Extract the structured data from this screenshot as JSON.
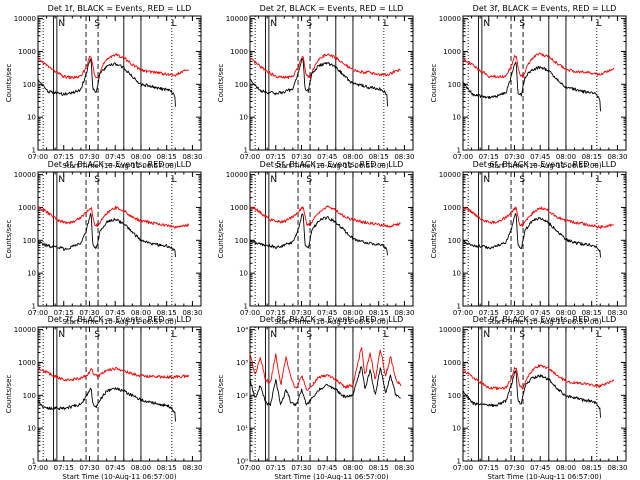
{
  "chart_data": {
    "type": "line",
    "x_tick_labels": [
      "07:00",
      "07:15",
      "07:30",
      "07:45",
      "08:00",
      "08:15",
      "08:30"
    ],
    "x_range": [
      "07:00",
      "08:35"
    ],
    "xlabel": "Start Time (10-Aug-11 06:57:00)",
    "ylabel": "Counts/sec",
    "y_scale": "log",
    "ylim": [
      1,
      12000
    ],
    "y_tick_labels": [
      "1",
      "10",
      "100",
      "1000",
      "10000"
    ],
    "y_tick_labels_exp": [
      "10⁰",
      "10¹",
      "10²",
      "10³",
      "10⁴"
    ],
    "markers": [
      {
        "label": "N",
        "time": "07:11"
      },
      {
        "label": "S",
        "time": "07:32"
      },
      {
        "label": "L",
        "time": "08:17"
      }
    ],
    "dotted_lines": [
      "07:03",
      "08:18"
    ],
    "solid_lines": [
      "07:09",
      "07:11",
      "07:50",
      "08:00"
    ],
    "dashed_lines": [
      "07:28",
      "07:35"
    ],
    "colors": {
      "events": "#000000",
      "lld": "#ff0000"
    },
    "panels": [
      {
        "title": "Det 1f, BLACK = Events, RED = LLD",
        "profile": "a",
        "events_scale": 1.0,
        "lld_scale": 1.0
      },
      {
        "title": "Det 2f, BLACK = Events, RED = LLD",
        "profile": "a",
        "events_scale": 1.05,
        "lld_scale": 1.0
      },
      {
        "title": "Det 3f, BLACK = Events, RED = LLD",
        "profile": "a",
        "events_scale": 0.8,
        "lld_scale": 1.05
      },
      {
        "title": "Det 4f, BLACK = Events, RED = LLD",
        "profile": "b",
        "events_scale": 0.9,
        "lld_scale": 1.0
      },
      {
        "title": "Det 5f, BLACK = Events, RED = LLD",
        "profile": "b",
        "events_scale": 1.0,
        "lld_scale": 1.05
      },
      {
        "title": "Det 6f, BLACK = Events, RED = LLD",
        "profile": "b",
        "events_scale": 0.95,
        "lld_scale": 1.0
      },
      {
        "title": "Det 7f, BLACK = Events, RED = LLD",
        "profile": "c",
        "events_scale": 0.9,
        "lld_scale": 1.0
      },
      {
        "title": "Det 8f, BLACK = Events, RED = LLD",
        "profile": "noisy",
        "events_scale": 1.0,
        "lld_scale": 1.0
      },
      {
        "title": "Det 9f, BLACK = Events, RED = LLD",
        "profile": "a",
        "events_scale": 0.95,
        "lld_scale": 1.0
      }
    ],
    "profiles": {
      "a": {
        "lld": [
          [
            0,
            600
          ],
          [
            5,
            380
          ],
          [
            10,
            250
          ],
          [
            15,
            170
          ],
          [
            20,
            160
          ],
          [
            25,
            170
          ],
          [
            28,
            320
          ],
          [
            30,
            650
          ],
          [
            31,
            700
          ],
          [
            33,
            180
          ],
          [
            35,
            170
          ],
          [
            38,
            400
          ],
          [
            42,
            700
          ],
          [
            45,
            800
          ],
          [
            50,
            650
          ],
          [
            55,
            400
          ],
          [
            60,
            270
          ],
          [
            65,
            240
          ],
          [
            70,
            230
          ],
          [
            75,
            200
          ],
          [
            80,
            190
          ],
          [
            85,
            250
          ],
          [
            88,
            280
          ]
        ],
        "events": [
          [
            0,
            140
          ],
          [
            3,
            90
          ],
          [
            6,
            60
          ],
          [
            10,
            55
          ],
          [
            15,
            50
          ],
          [
            20,
            55
          ],
          [
            25,
            70
          ],
          [
            28,
            200
          ],
          [
            30,
            500
          ],
          [
            31,
            600
          ],
          [
            32,
            70
          ],
          [
            34,
            60
          ],
          [
            36,
            200
          ],
          [
            40,
            350
          ],
          [
            45,
            420
          ],
          [
            50,
            320
          ],
          [
            55,
            170
          ],
          [
            60,
            100
          ],
          [
            65,
            90
          ],
          [
            70,
            75
          ],
          [
            75,
            70
          ],
          [
            78,
            60
          ],
          [
            80,
            40
          ],
          [
            80.3,
            10
          ]
        ]
      },
      "b": {
        "lld": [
          [
            0,
            1000
          ],
          [
            4,
            800
          ],
          [
            8,
            560
          ],
          [
            12,
            400
          ],
          [
            15,
            350
          ],
          [
            20,
            350
          ],
          [
            25,
            500
          ],
          [
            28,
            700
          ],
          [
            30,
            900
          ],
          [
            31,
            1000
          ],
          [
            33,
            300
          ],
          [
            35,
            280
          ],
          [
            38,
            500
          ],
          [
            42,
            800
          ],
          [
            45,
            1000
          ],
          [
            50,
            800
          ],
          [
            55,
            500
          ],
          [
            60,
            400
          ],
          [
            65,
            350
          ],
          [
            70,
            320
          ],
          [
            75,
            280
          ],
          [
            80,
            250
          ],
          [
            85,
            280
          ],
          [
            88,
            300
          ]
        ],
        "events": [
          [
            0,
            100
          ],
          [
            4,
            80
          ],
          [
            8,
            70
          ],
          [
            12,
            70
          ],
          [
            15,
            60
          ],
          [
            20,
            70
          ],
          [
            25,
            90
          ],
          [
            28,
            200
          ],
          [
            30,
            550
          ],
          [
            31,
            700
          ],
          [
            32,
            80
          ],
          [
            34,
            60
          ],
          [
            36,
            200
          ],
          [
            40,
            400
          ],
          [
            45,
            500
          ],
          [
            50,
            350
          ],
          [
            55,
            200
          ],
          [
            60,
            110
          ],
          [
            65,
            90
          ],
          [
            70,
            80
          ],
          [
            75,
            75
          ],
          [
            78,
            65
          ],
          [
            80,
            50
          ],
          [
            80.3,
            20
          ]
        ]
      },
      "c": {
        "lld": [
          [
            0,
            700
          ],
          [
            5,
            500
          ],
          [
            10,
            380
          ],
          [
            15,
            300
          ],
          [
            20,
            300
          ],
          [
            25,
            330
          ],
          [
            28,
            400
          ],
          [
            30,
            500
          ],
          [
            31,
            650
          ],
          [
            33,
            400
          ],
          [
            35,
            380
          ],
          [
            38,
            500
          ],
          [
            42,
            600
          ],
          [
            45,
            650
          ],
          [
            50,
            550
          ],
          [
            55,
            450
          ],
          [
            60,
            400
          ],
          [
            65,
            380
          ],
          [
            70,
            370
          ],
          [
            75,
            360
          ],
          [
            80,
            360
          ],
          [
            85,
            380
          ],
          [
            88,
            400
          ]
        ],
        "events": [
          [
            0,
            80
          ],
          [
            3,
            50
          ],
          [
            6,
            45
          ],
          [
            10,
            45
          ],
          [
            15,
            45
          ],
          [
            20,
            50
          ],
          [
            25,
            60
          ],
          [
            28,
            100
          ],
          [
            30,
            150
          ],
          [
            31,
            200
          ],
          [
            32,
            60
          ],
          [
            34,
            50
          ],
          [
            36,
            80
          ],
          [
            40,
            150
          ],
          [
            45,
            180
          ],
          [
            50,
            150
          ],
          [
            55,
            110
          ],
          [
            60,
            80
          ],
          [
            65,
            70
          ],
          [
            70,
            60
          ],
          [
            75,
            55
          ],
          [
            78,
            45
          ],
          [
            80,
            30
          ],
          [
            80.3,
            10
          ]
        ]
      },
      "noisy": {
        "lld": [
          [
            0,
            2000
          ],
          [
            3,
            400
          ],
          [
            6,
            1500
          ],
          [
            9,
            300
          ],
          [
            12,
            250
          ],
          [
            15,
            1800
          ],
          [
            18,
            200
          ],
          [
            21,
            1500
          ],
          [
            24,
            300
          ],
          [
            27,
            150
          ],
          [
            30,
            400
          ],
          [
            33,
            150
          ],
          [
            36,
            200
          ],
          [
            40,
            350
          ],
          [
            45,
            400
          ],
          [
            50,
            300
          ],
          [
            55,
            180
          ],
          [
            60,
            200
          ],
          [
            65,
            3000
          ],
          [
            67,
            400
          ],
          [
            70,
            2000
          ],
          [
            73,
            300
          ],
          [
            76,
            2500
          ],
          [
            79,
            400
          ],
          [
            82,
            1500
          ],
          [
            85,
            300
          ],
          [
            88,
            200
          ]
        ],
        "events": [
          [
            0,
            300
          ],
          [
            3,
            80
          ],
          [
            6,
            200
          ],
          [
            9,
            60
          ],
          [
            12,
            50
          ],
          [
            15,
            300
          ],
          [
            18,
            50
          ],
          [
            21,
            150
          ],
          [
            24,
            60
          ],
          [
            27,
            50
          ],
          [
            30,
            150
          ],
          [
            33,
            50
          ],
          [
            36,
            80
          ],
          [
            40,
            150
          ],
          [
            45,
            200
          ],
          [
            50,
            150
          ],
          [
            55,
            90
          ],
          [
            60,
            100
          ],
          [
            65,
            800
          ],
          [
            67,
            150
          ],
          [
            70,
            600
          ],
          [
            73,
            100
          ],
          [
            76,
            700
          ],
          [
            79,
            120
          ],
          [
            82,
            400
          ],
          [
            85,
            100
          ],
          [
            88,
            80
          ]
        ]
      }
    }
  }
}
